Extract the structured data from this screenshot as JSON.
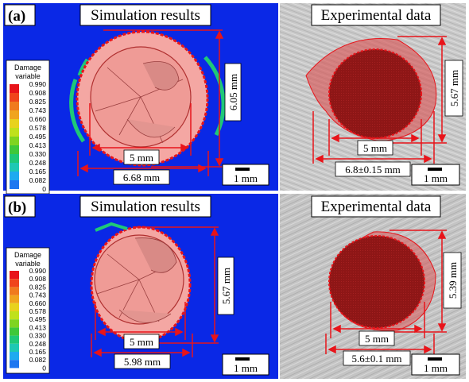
{
  "panels": [
    {
      "label": "(a)",
      "sim_title": "Simulation results",
      "exp_title": "Experimental data",
      "legend": {
        "title_line1": "Damage",
        "title_line2": "variable",
        "values": [
          "0.990",
          "0.908",
          "0.825",
          "0.743",
          "0.660",
          "0.578",
          "0.495",
          "0.413",
          "0.330",
          "0.248",
          "0.165",
          "0.082",
          "0"
        ],
        "colors": [
          "#e8141a",
          "#f0451c",
          "#f07a1e",
          "#f0a41e",
          "#e8d21e",
          "#bfe11c",
          "#7fd420",
          "#3ec83a",
          "#1ec878",
          "#1ec8b4",
          "#1eaaf0",
          "#1e78f0",
          "#1e3cf0"
        ]
      },
      "sim_dims": {
        "height": "6.05 mm",
        "inner": "5 mm",
        "outer": "6.68 mm"
      },
      "exp_dims": {
        "height": "5.67 mm",
        "inner": "5 mm",
        "outer": "6.8±0.15 mm"
      },
      "scale": "1 mm"
    },
    {
      "label": "(b)",
      "sim_title": "Simulation results",
      "exp_title": "Experimental data",
      "legend": {
        "title_line1": "Damage",
        "title_line2": "variable",
        "values": [
          "0.990",
          "0.908",
          "0.825",
          "0.743",
          "0.660",
          "0.578",
          "0.495",
          "0.413",
          "0.330",
          "0.248",
          "0.165",
          "0.082",
          "0"
        ],
        "colors": [
          "#e8141a",
          "#f0451c",
          "#f07a1e",
          "#f0a41e",
          "#e8d21e",
          "#bfe11c",
          "#7fd420",
          "#3ec83a",
          "#1ec878",
          "#1ec8b4",
          "#1eaaf0",
          "#1e78f0",
          "#1e3cf0"
        ]
      },
      "sim_dims": {
        "height": "5.67 mm",
        "inner": "5 mm",
        "outer": "5.98 mm"
      },
      "exp_dims": {
        "height": "5.39 mm",
        "inner": "5 mm",
        "outer": "5.6±0.1 mm"
      },
      "scale": "1 mm"
    }
  ],
  "colors": {
    "sim_background": "#0a28e6",
    "exp_background": "#c8c8c8",
    "dimension_line": "#e8141a",
    "hole_fill": "#f4a7a3",
    "exp_hole_fill": "#8c1a1a"
  }
}
